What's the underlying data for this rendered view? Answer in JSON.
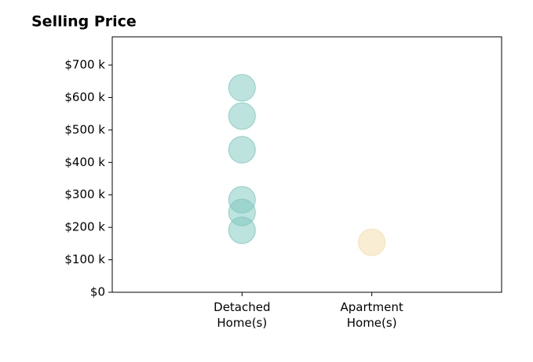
{
  "chart_data": {
    "type": "strip",
    "title": "Selling Price",
    "categories": [
      "Detached Home(s)",
      "Apartment Home(s)"
    ],
    "series": [
      {
        "color": "#7cc7bd",
        "values": [
          630,
          543,
          439,
          285,
          246,
          191
        ]
      },
      {
        "color": "#f4dca8",
        "values": [
          154
        ]
      }
    ],
    "ylim": [
      0,
      787
    ],
    "yticks": [
      {
        "value": 0,
        "label": "$0"
      },
      {
        "value": 100,
        "label": "$100 k"
      },
      {
        "value": 200,
        "label": "$200 k"
      },
      {
        "value": 300,
        "label": "$300 k"
      },
      {
        "value": 400,
        "label": "$400 k"
      },
      {
        "value": 500,
        "label": "$500 k"
      },
      {
        "value": 600,
        "label": "$600 k"
      },
      {
        "value": 700,
        "label": "$700 k"
      }
    ]
  }
}
